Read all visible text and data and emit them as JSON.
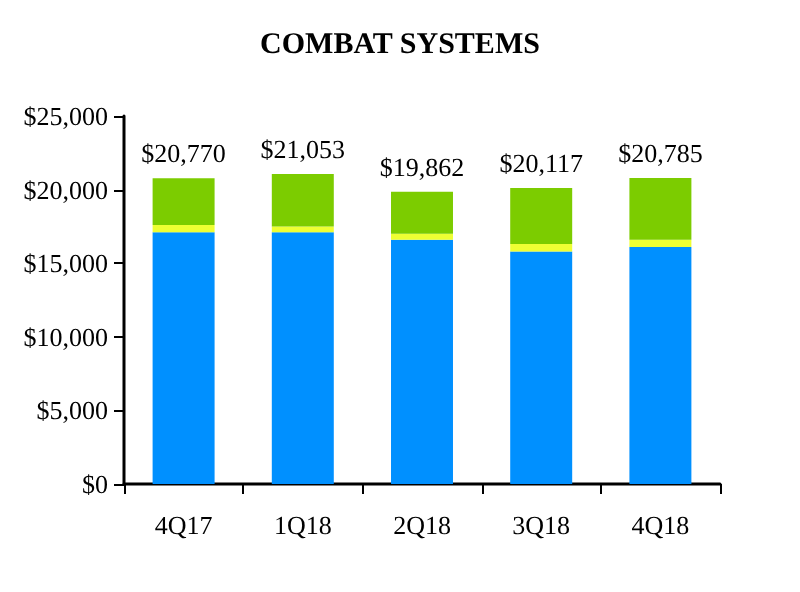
{
  "chart_data": {
    "type": "bar",
    "title": "COMBAT SYSTEMS",
    "stacked": true,
    "categories": [
      "4Q17",
      "1Q18",
      "2Q18",
      "3Q18",
      "4Q18"
    ],
    "series": [
      {
        "color": "#0090ff",
        "values": [
          17100,
          17100,
          16600,
          15800,
          16100
        ]
      },
      {
        "color": "#eeff33",
        "values": [
          500,
          400,
          400,
          500,
          500
        ]
      },
      {
        "color": "#7ccc00",
        "values": [
          3170,
          3553,
          2862,
          3817,
          4185
        ]
      }
    ],
    "totals": [
      "$20,770",
      "$21,053",
      "$19,862",
      "$20,117",
      "$20,785"
    ],
    "ylim": [
      0,
      25000
    ],
    "yticks": [
      {
        "value": 0,
        "label": "$0"
      },
      {
        "value": 5000,
        "label": "$5,000"
      },
      {
        "value": 10000,
        "label": "$10,000"
      },
      {
        "value": 15000,
        "label": "$15,000"
      },
      {
        "value": 20000,
        "label": "$20,000"
      },
      {
        "value": 25000,
        "label": "$25,000"
      }
    ],
    "grid": false
  }
}
